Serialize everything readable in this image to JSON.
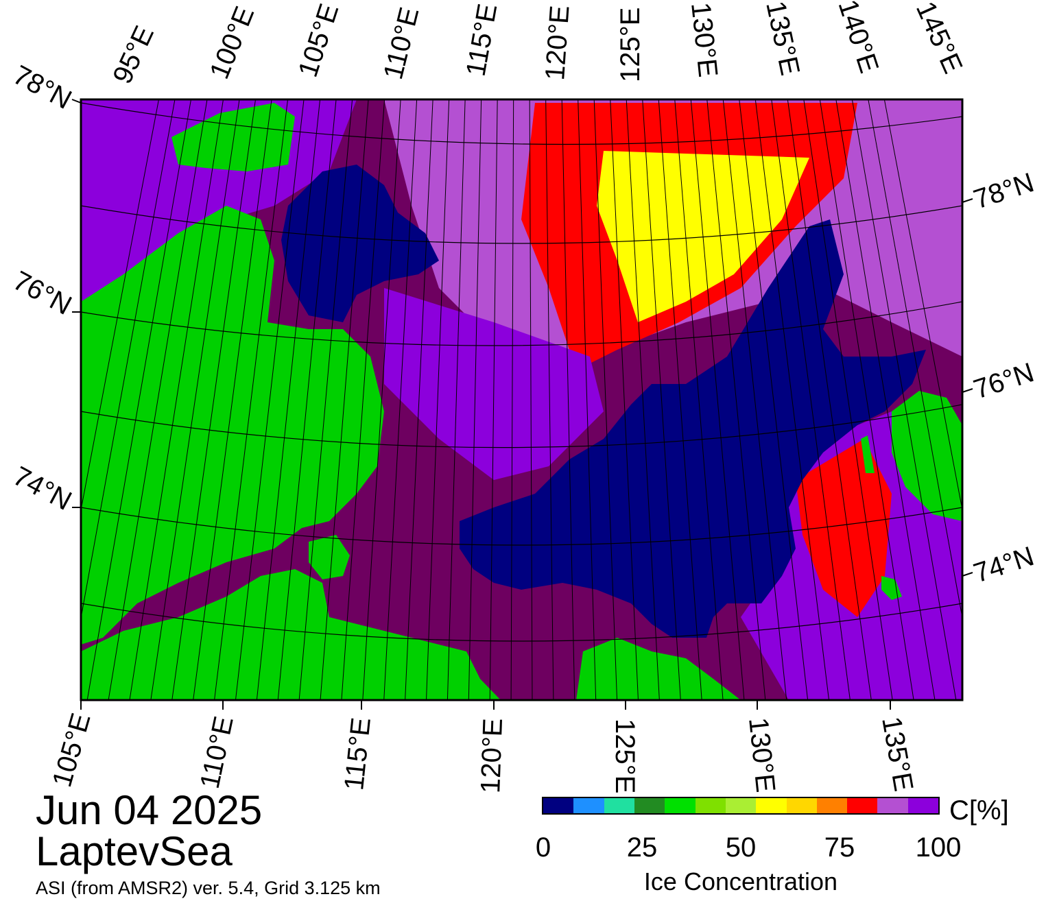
{
  "title": {
    "date": "Jun 04 2025",
    "region": "LaptevSea",
    "subtitle": "ASI (from AMSR2) ver. 5.4,  Grid 3.125 km"
  },
  "map": {
    "lat_labels_left": [
      "78°N",
      "76°N",
      "74°N"
    ],
    "lat_labels_right": [
      "78°N",
      "76°N",
      "74°N"
    ],
    "lon_labels_top": [
      "95°E",
      "100°E",
      "105°E",
      "110°E",
      "115°E",
      "120°E",
      "125°E",
      "130°E",
      "135°E",
      "140°E",
      "145°E"
    ],
    "lon_labels_bottom": [
      "105°E",
      "110°E",
      "115°E",
      "120°E",
      "125°E",
      "130°E",
      "135°E"
    ],
    "colors": {
      "land": "#00d000",
      "open_water": "#000080",
      "consolidated_ice": "#6e0060",
      "ice_90": "#8c00dc",
      "ice_95": "#b450d2",
      "ice_85": "#ff0000",
      "ice_75": "#ffff00",
      "land_ice": "#808080"
    }
  },
  "colorbar": {
    "unit": "C[%]",
    "label": "Ice Concentration",
    "ticks": [
      "0",
      "25",
      "50",
      "75",
      "100"
    ],
    "colors": [
      "#000080",
      "#1e90ff",
      "#20e0a0",
      "#228b22",
      "#00e000",
      "#7fe000",
      "#aaee33",
      "#ffff00",
      "#ffd700",
      "#ff8000",
      "#ff0000",
      "#b450d2",
      "#8c00dc"
    ]
  }
}
